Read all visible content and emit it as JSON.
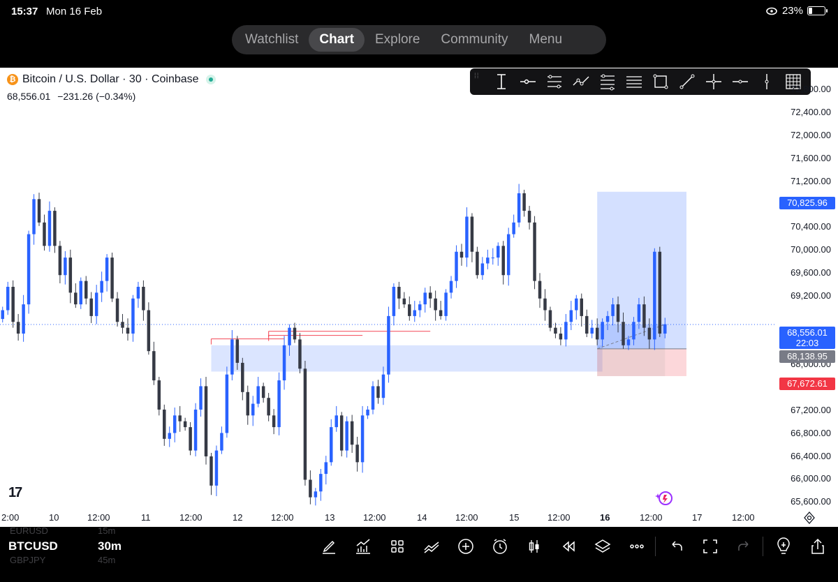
{
  "status_bar": {
    "time": "15:37",
    "date": "Mon 16 Feb",
    "battery_percent": "23%",
    "battery_level": 0.23
  },
  "nav": {
    "items": [
      "Watchlist",
      "Chart",
      "Explore",
      "Community",
      "Menu"
    ],
    "active": "Chart"
  },
  "symbol": {
    "title": "Bitcoin / U.S. Dollar · 30 · Coinbase",
    "last_price": "68,556.01",
    "change": "−231.26 (−0.34%)"
  },
  "drawing_tools": [
    "text-cursor-icon",
    "horizontal-ray-icon",
    "parallel-channel-icon",
    "trend-polyline-icon",
    "fib-levels-icon",
    "horizontal-lines-icon",
    "rectangle-icon",
    "trend-line-icon",
    "crosshair-icon",
    "horizontal-line-icon",
    "vertical-line-icon",
    "grid-icon"
  ],
  "price_axis": {
    "labels": [
      "72,400.00",
      "72,000.00",
      "71,600.00",
      "71,200.00",
      "70,400.00",
      "70,000.00",
      "69,600.00",
      "69,200.00",
      "68,000.00",
      "67,200.00",
      "66,800.00",
      "66,400.00",
      "66,000.00",
      "65,600.00"
    ],
    "top_partial": "72,800.00"
  },
  "price_tags": {
    "target": "70,825.96",
    "current": "68,556.01",
    "countdown": "22:03",
    "entry": "68,138.95",
    "stop": "67,672.61"
  },
  "time_axis": [
    {
      "label": "2:00",
      "bold": false
    },
    {
      "label": "10",
      "bold": false
    },
    {
      "label": "12:00",
      "bold": false
    },
    {
      "label": "11",
      "bold": false
    },
    {
      "label": "12:00",
      "bold": false
    },
    {
      "label": "12",
      "bold": false
    },
    {
      "label": "12:00",
      "bold": false
    },
    {
      "label": "13",
      "bold": false
    },
    {
      "label": "12:00",
      "bold": false
    },
    {
      "label": "14",
      "bold": false
    },
    {
      "label": "12:00",
      "bold": false
    },
    {
      "label": "15",
      "bold": false
    },
    {
      "label": "12:00",
      "bold": false
    },
    {
      "label": "16",
      "bold": true
    },
    {
      "label": "12:00",
      "bold": false
    },
    {
      "label": "17",
      "bold": false
    },
    {
      "label": "12:00",
      "bold": false
    }
  ],
  "bottom": {
    "symbol_prev": "EURUSD",
    "symbol": "BTCUSD",
    "symbol_next": "GBPJPY",
    "interval_prev": "15m",
    "interval": "30m",
    "interval_next": "45m"
  },
  "bottom_tools": [
    "draw-icon",
    "indicators-icon",
    "templates-icon",
    "compare-icon",
    "add-icon",
    "alert-icon",
    "chart-type-icon",
    "replay-icon",
    "layers-icon",
    "more-icon",
    "undo-icon",
    "fullscreen-icon",
    "redo-icon",
    "ideas-icon",
    "share-icon"
  ],
  "chart_data": {
    "type": "candlestick",
    "symbol": "BTCUSD",
    "interval": "30m",
    "ylim": [
      65500,
      72900
    ],
    "last_price": 68556.01,
    "closes": [
      68800,
      69200,
      68600,
      68400,
      68900,
      70100,
      70700,
      70300,
      69900,
      70500,
      69900,
      69400,
      69700,
      69100,
      68900,
      69300,
      69000,
      68700,
      69100,
      69300,
      69700,
      69000,
      68600,
      68500,
      68400,
      69000,
      69200,
      68800,
      68100,
      67600,
      67100,
      66600,
      66700,
      67000,
      66900,
      66800,
      66400,
      67100,
      67500,
      66300,
      65800,
      66400,
      66700,
      67700,
      68300,
      67900,
      67400,
      67000,
      67200,
      67500,
      67300,
      67000,
      66800,
      67600,
      68200,
      68500,
      68300,
      67800,
      65900,
      65600,
      65700,
      66000,
      66200,
      66800,
      67000,
      66400,
      66900,
      66500,
      66200,
      67000,
      67100,
      67500,
      67300,
      67700,
      68700,
      69200,
      69000,
      68900,
      68700,
      68800,
      68900,
      69100,
      69000,
      68800,
      68700,
      69100,
      69300,
      69800,
      69700,
      70400,
      69800,
      69400,
      69600,
      69700,
      69700,
      69900,
      69400,
      70100,
      70300,
      70800,
      70500,
      70300,
      69300,
      69000,
      68800,
      68500,
      68400,
      68300,
      68600,
      68800,
      69000,
      68700,
      68400,
      68500,
      68300,
      68600,
      68700,
      68900,
      68600,
      68200,
      68300,
      68600,
      68900,
      68500,
      68300,
      69800,
      68400,
      68560
    ],
    "annotations": {
      "long_position": {
        "entry": 68138.95,
        "target": 70825.96,
        "stop": 67672.61
      },
      "demand_zone": [
        67750,
        68200
      ],
      "liquidity_lines": [
        68310,
        68370,
        68440
      ]
    }
  }
}
